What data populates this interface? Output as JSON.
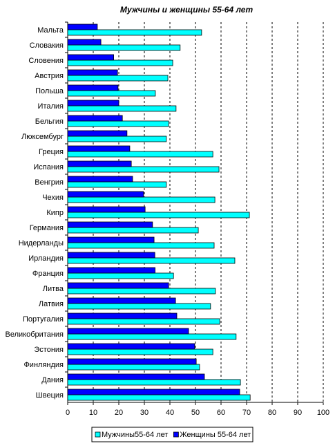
{
  "chart_data": {
    "type": "hbar",
    "title": "Мужчины и женщины 55-64 лет",
    "categories": [
      "Мальта",
      "Словакия",
      "Словения",
      "Австрия",
      "Польша",
      "Италия",
      "Бельгия",
      "Люксембург",
      "Греция",
      "Испания",
      "Венгрия",
      "Чехия",
      "Кипр",
      "Германия",
      "Нидерланды",
      "Ирландия",
      "Франция",
      "Литва",
      "Латвия",
      "Португалия",
      "Великобритания",
      "Эстония",
      "Финляндия",
      "Дания",
      "Швеция"
    ],
    "series": [
      {
        "name": "Мужчины55-64 лет",
        "color": "#00ffff",
        "values": [
          52.4,
          44,
          41.1,
          39.2,
          34.3,
          42.4,
          39.5,
          38.6,
          56.8,
          59.2,
          38.6,
          57.6,
          71.1,
          51.1,
          57.3,
          65.4,
          41.4,
          57.8,
          55.9,
          59.5,
          65.9,
          56.8,
          51.6,
          67.6,
          71.4
        ]
      },
      {
        "name": "Женщины 55-64 лет",
        "color": "#0000ff",
        "values": [
          11.6,
          13,
          18,
          19.5,
          19.7,
          20,
          21.4,
          23.2,
          24.3,
          24.9,
          25.4,
          29.7,
          30.3,
          33.2,
          33.8,
          34.1,
          34.2,
          39.5,
          42.2,
          42.7,
          47.3,
          49.7,
          50.3,
          53.5,
          67.3
        ]
      }
    ],
    "xlim": [
      0,
      100
    ],
    "xticks": [
      0,
      10,
      20,
      30,
      40,
      50,
      60,
      70,
      80,
      90,
      100
    ],
    "grid": true,
    "legend": "bottom"
  }
}
